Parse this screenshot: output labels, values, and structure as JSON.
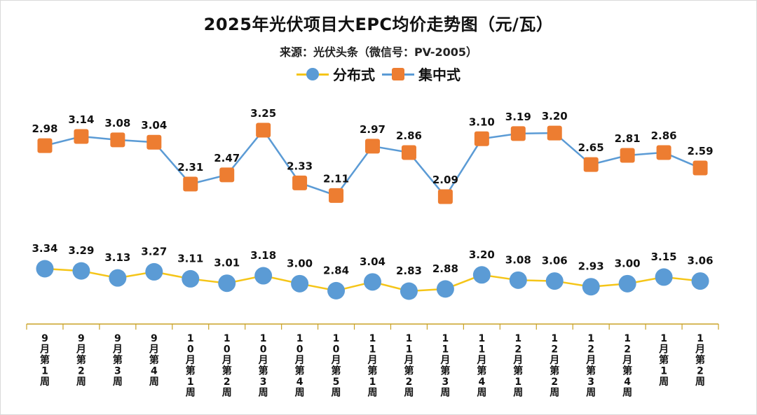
{
  "colors": {
    "distributed_line": "#f5c518",
    "distributed_marker": "#5b9bd5",
    "centralized_line": "#5b9bd5",
    "centralized_marker": "#ed7d31",
    "axis": "#c9a227"
  },
  "chart_data": {
    "type": "line",
    "title": "2025年光伏项目大EPC均价走势图（元/瓦）",
    "subtitle": "来源：光伏头条（微信号：PV-2005）",
    "legend_position": "top",
    "grid": false,
    "categories": [
      "9月第1周",
      "9月第2周",
      "9月第3周",
      "9月第4周",
      "10月第1周",
      "10月第2周",
      "10月第3周",
      "10月第4周",
      "10月第5周",
      "11月第1周",
      "11月第2周",
      "11月第3周",
      "11月第4周",
      "12月第1周",
      "12月第2周",
      "12月第3周",
      "12月第4周",
      "1月第1周",
      "1月第2周"
    ],
    "series": [
      {
        "name": "分布式",
        "values": [
          3.34,
          3.29,
          3.13,
          3.27,
          3.11,
          3.01,
          3.18,
          3.0,
          2.84,
          3.04,
          2.83,
          2.88,
          3.2,
          3.08,
          3.06,
          2.93,
          3.0,
          3.15,
          3.06
        ],
        "labels": [
          "3.34",
          "3.29",
          "3.13",
          "3.27",
          "3.11",
          "3.01",
          "3.18",
          "3.00",
          "2.84",
          "3.04",
          "2.83",
          "2.88",
          "3.20",
          "3.08",
          "3.06",
          "2.93",
          "3.00",
          "3.15",
          "3.06"
        ]
      },
      {
        "name": "集中式",
        "values": [
          2.98,
          3.14,
          3.08,
          3.04,
          2.31,
          2.47,
          3.25,
          2.33,
          2.11,
          2.97,
          2.86,
          2.09,
          3.1,
          3.19,
          3.2,
          2.65,
          2.81,
          2.86,
          2.59
        ],
        "labels": [
          "2.98",
          "3.14",
          "3.08",
          "3.04",
          "2.31",
          "2.47",
          "3.25",
          "2.33",
          "2.11",
          "2.97",
          "2.86",
          "2.09",
          "3.10",
          "3.19",
          "3.20",
          "2.65",
          "2.81",
          "2.86",
          "2.59"
        ]
      }
    ]
  }
}
